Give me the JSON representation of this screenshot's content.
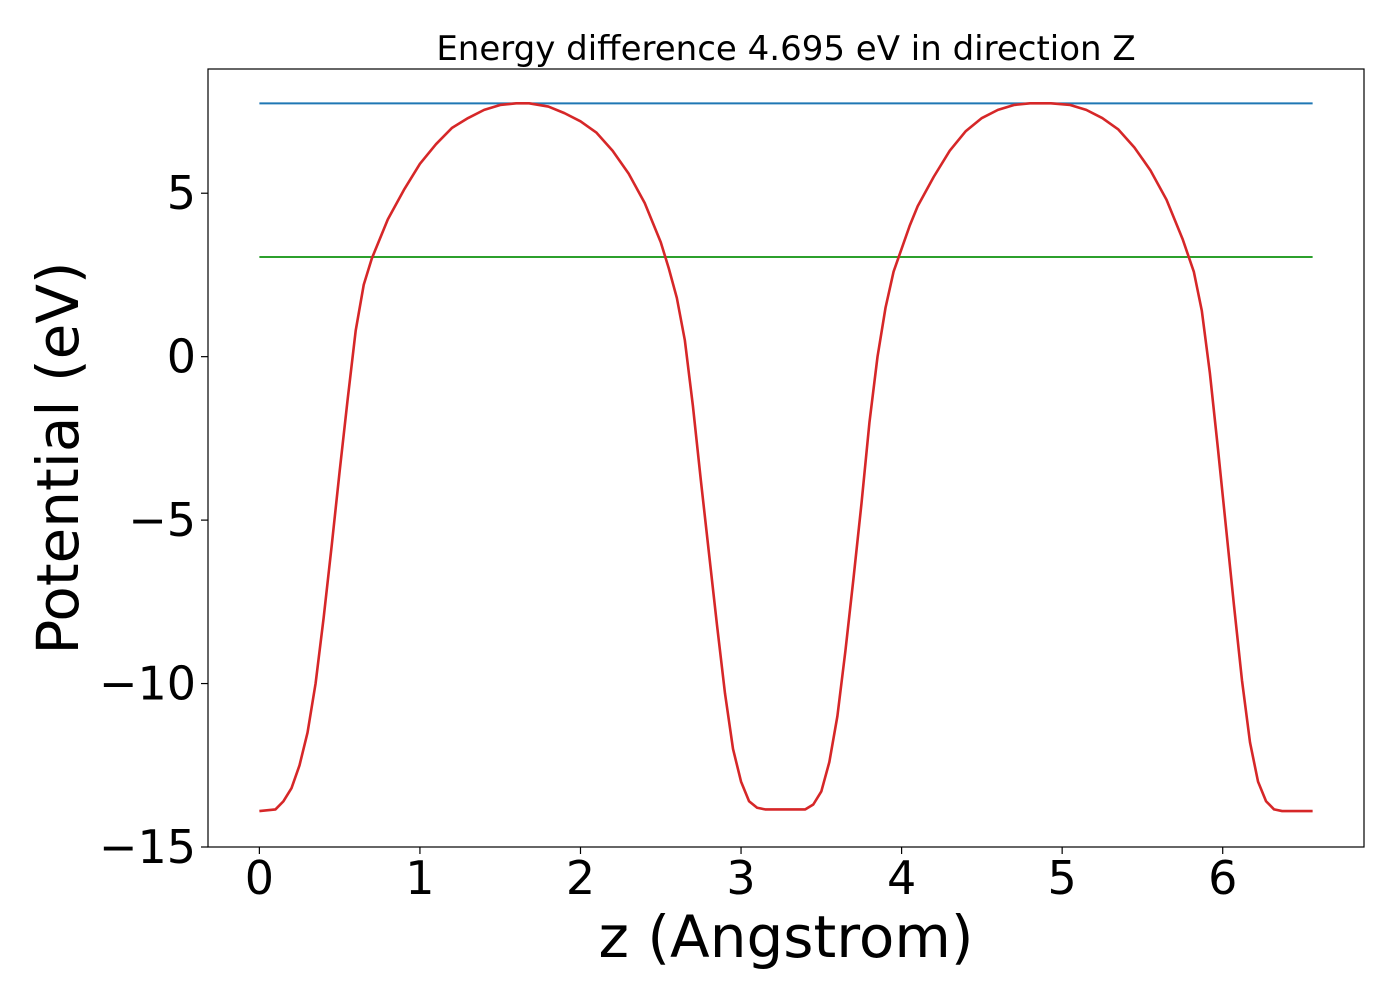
{
  "chart_data": {
    "type": "line",
    "title": "Energy difference 4.695 eV in direction Z",
    "xlabel": "z (Angstrom)",
    "ylabel": "Potential (eV)",
    "xlim": [
      -0.32,
      6.88
    ],
    "ylim": [
      -15.0,
      8.8
    ],
    "xticks": [
      0,
      1,
      2,
      3,
      4,
      5,
      6
    ],
    "xtick_labels": [
      "0",
      "1",
      "2",
      "3",
      "4",
      "5",
      "6"
    ],
    "yticks": [
      5,
      0,
      -5,
      -10,
      -15
    ],
    "ytick_labels": [
      "5",
      "0",
      "−5",
      "−10",
      "−15"
    ],
    "grid": false,
    "legend": "none",
    "colors": {
      "profile": "#d62728",
      "top_level": "#1f77b4",
      "mid_level": "#2ca02c"
    },
    "series": [
      {
        "x": [
          0.0,
          0.1,
          0.15,
          0.2,
          0.25,
          0.3,
          0.35,
          0.4,
          0.45,
          0.5,
          0.55,
          0.6,
          0.65,
          0.7,
          0.75,
          0.8,
          0.9,
          1.0,
          1.1,
          1.2,
          1.3,
          1.4,
          1.5,
          1.6,
          1.68,
          1.8,
          1.9,
          2.0,
          2.1,
          2.2,
          2.3,
          2.4,
          2.5,
          2.55,
          2.6,
          2.65,
          2.7,
          2.75,
          2.8,
          2.85,
          2.9,
          2.95,
          3.0,
          3.05,
          3.1,
          3.15,
          3.2,
          3.3,
          3.4,
          3.45,
          3.5,
          3.55,
          3.6,
          3.65,
          3.7,
          3.75,
          3.8,
          3.85,
          3.9,
          3.95,
          4.0,
          4.05,
          4.1,
          4.2,
          4.3,
          4.4,
          4.5,
          4.6,
          4.7,
          4.8,
          4.93,
          5.05,
          5.15,
          5.25,
          5.35,
          5.45,
          5.55,
          5.65,
          5.75,
          5.82,
          5.87,
          5.92,
          5.97,
          6.02,
          6.07,
          6.12,
          6.17,
          6.22,
          6.27,
          6.32,
          6.37,
          6.42,
          6.47,
          6.56
        ],
        "y": [
          -13.9,
          -13.85,
          -13.6,
          -13.2,
          -12.5,
          -11.5,
          -10.0,
          -8.0,
          -5.8,
          -3.5,
          -1.3,
          0.8,
          2.2,
          3.0,
          3.6,
          4.2,
          5.1,
          5.9,
          6.5,
          7.0,
          7.3,
          7.55,
          7.7,
          7.75,
          7.75,
          7.65,
          7.45,
          7.2,
          6.85,
          6.3,
          5.6,
          4.7,
          3.5,
          2.7,
          1.8,
          0.5,
          -1.5,
          -3.8,
          -6.0,
          -8.2,
          -10.3,
          -12.0,
          -13.0,
          -13.6,
          -13.8,
          -13.85,
          -13.85,
          -13.85,
          -13.85,
          -13.7,
          -13.3,
          -12.4,
          -11.0,
          -9.0,
          -6.8,
          -4.5,
          -2.0,
          0.0,
          1.5,
          2.6,
          3.3,
          4.0,
          4.6,
          5.5,
          6.3,
          6.9,
          7.3,
          7.55,
          7.7,
          7.75,
          7.75,
          7.7,
          7.55,
          7.3,
          6.95,
          6.4,
          5.7,
          4.8,
          3.6,
          2.6,
          1.4,
          -0.5,
          -2.8,
          -5.2,
          -7.6,
          -9.9,
          -11.8,
          -13.0,
          -13.6,
          -13.85,
          -13.9,
          -13.9,
          -13.9,
          -13.9
        ]
      },
      {
        "x": [
          0.0,
          6.56
        ],
        "y": [
          7.75,
          7.75
        ]
      },
      {
        "x": [
          0.0,
          6.56
        ],
        "y": [
          3.05,
          3.05
        ]
      }
    ]
  }
}
